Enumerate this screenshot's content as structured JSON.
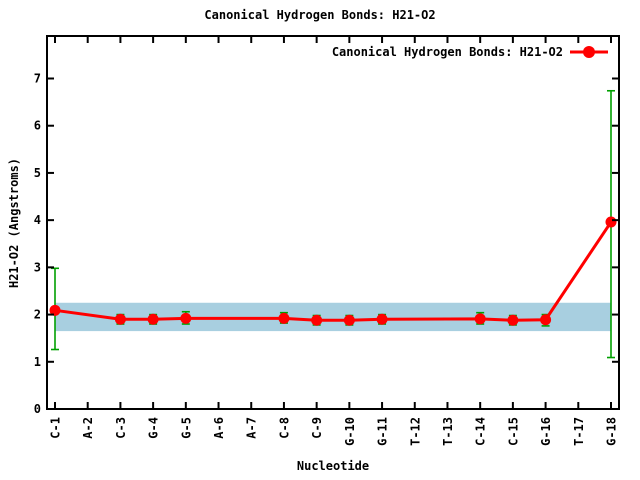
{
  "chart": {
    "title": "Canonical Hydrogen Bonds: H21-O2",
    "xlabel": "Nucleotide",
    "ylabel": "H21-O2 (Angstroms)",
    "legend_label": "Canonical Hydrogen Bonds: H21-O2"
  },
  "colors": {
    "series_line": "#ff0000",
    "error_bar": "#00a000",
    "band": "#a8cfe0",
    "axis": "#000000",
    "background": "#ffffff"
  },
  "chart_data": {
    "type": "line",
    "title": "Canonical Hydrogen Bonds: H21-O2",
    "xlabel": "Nucleotide",
    "ylabel": "H21-O2 (Angstroms)",
    "grid": false,
    "legend_position": "top-right-inside",
    "categories": [
      "C-1",
      "A-2",
      "C-3",
      "G-4",
      "G-5",
      "A-6",
      "A-7",
      "C-8",
      "C-9",
      "G-10",
      "G-11",
      "T-12",
      "T-13",
      "C-14",
      "C-15",
      "G-16",
      "T-17",
      "G-18"
    ],
    "yticks": [
      0,
      1,
      2,
      3,
      4,
      5,
      6,
      7
    ],
    "ylim": [
      0,
      7.9
    ],
    "band": {
      "ymin": 1.65,
      "ymax": 2.25
    },
    "series": [
      {
        "name": "Canonical Hydrogen Bonds: H21-O2",
        "marker": "filled-circle",
        "points": [
          {
            "category": "C-1",
            "y": 2.09,
            "err_low": 1.26,
            "err_high": 2.98
          },
          {
            "category": "C-3",
            "y": 1.9,
            "err_low": 1.8,
            "err_high": 2.0
          },
          {
            "category": "G-4",
            "y": 1.9,
            "err_low": 1.8,
            "err_high": 2.0
          },
          {
            "category": "G-5",
            "y": 1.92,
            "err_low": 1.8,
            "err_high": 2.06
          },
          {
            "category": "C-8",
            "y": 1.92,
            "err_low": 1.82,
            "err_high": 2.04
          },
          {
            "category": "C-9",
            "y": 1.88,
            "err_low": 1.78,
            "err_high": 1.98
          },
          {
            "category": "G-10",
            "y": 1.88,
            "err_low": 1.78,
            "err_high": 1.98
          },
          {
            "category": "G-11",
            "y": 1.9,
            "err_low": 1.8,
            "err_high": 2.0
          },
          {
            "category": "C-14",
            "y": 1.91,
            "err_low": 1.8,
            "err_high": 2.04
          },
          {
            "category": "C-15",
            "y": 1.88,
            "err_low": 1.78,
            "err_high": 1.98
          },
          {
            "category": "G-16",
            "y": 1.89,
            "err_low": 1.76,
            "err_high": 2.0
          },
          {
            "category": "G-18",
            "y": 3.96,
            "err_low": 1.09,
            "err_high": 6.74
          }
        ]
      }
    ]
  }
}
